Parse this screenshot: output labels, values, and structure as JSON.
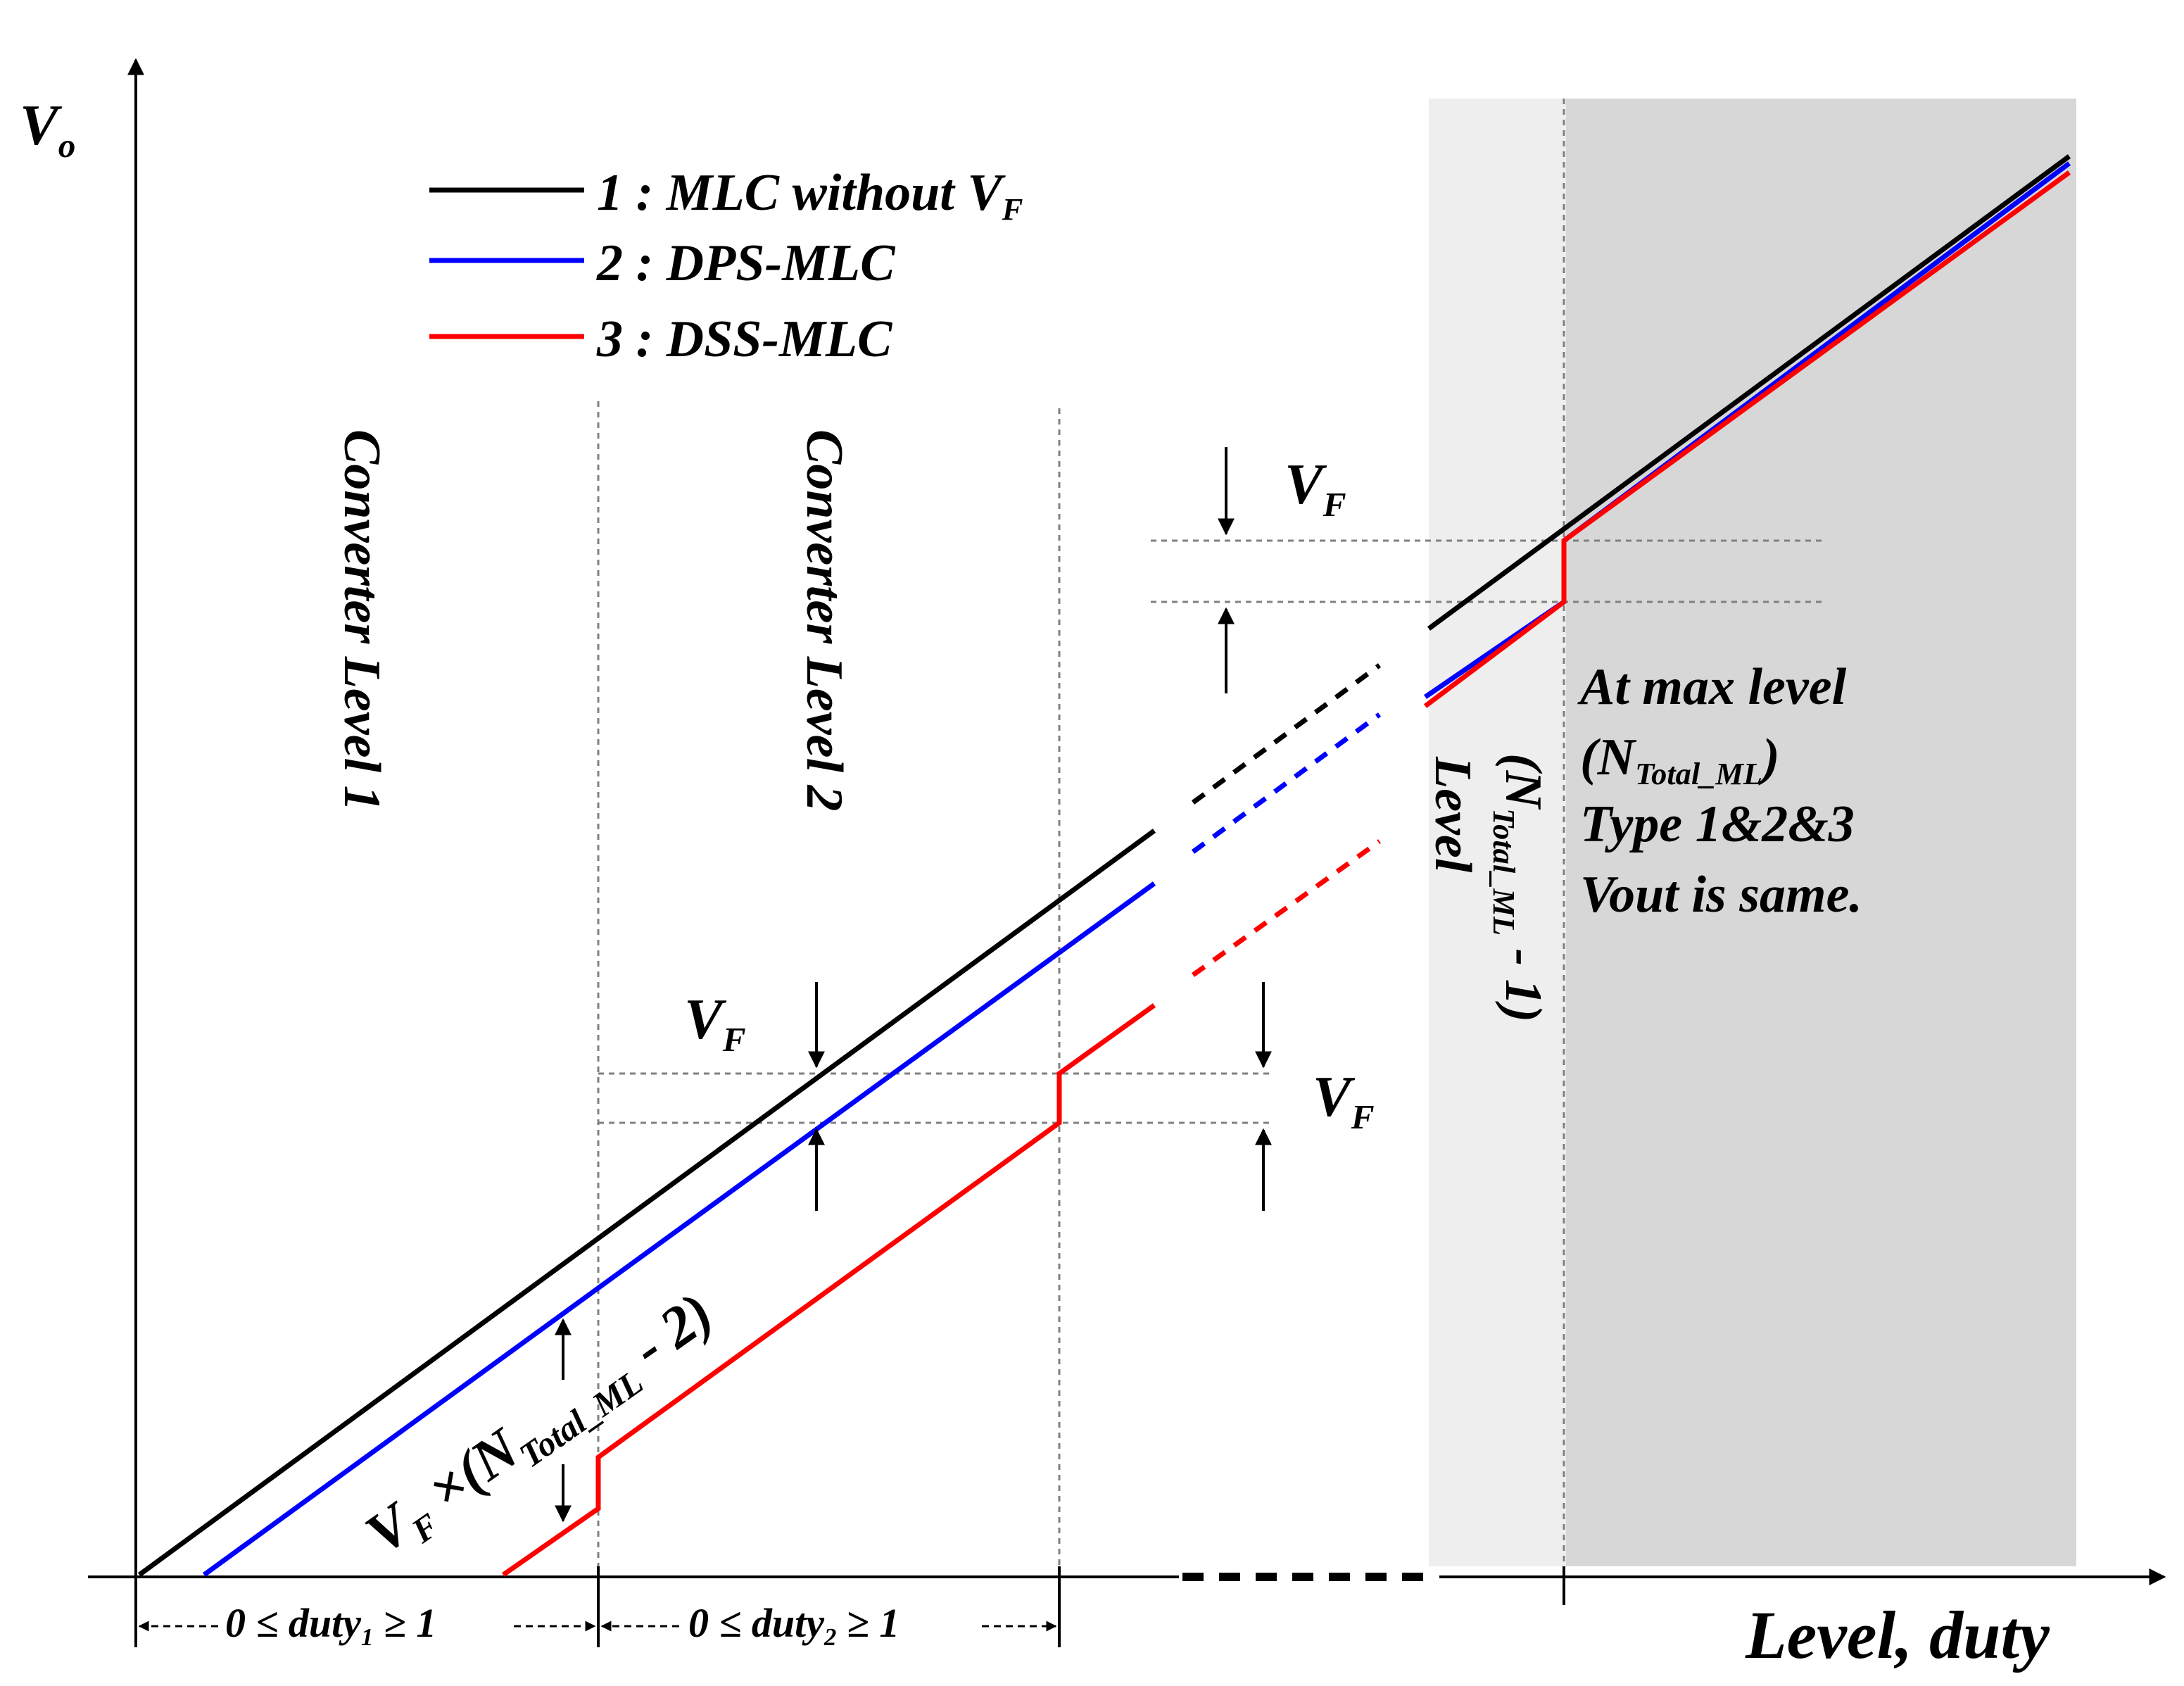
{
  "colors": {
    "series_1": "#000000",
    "series_2": "#0000ff",
    "series_3": "#ff0000",
    "shade_light": "#eeeeee",
    "shade_dark": "#d7d7d7",
    "guide": "#808080"
  },
  "axes": {
    "y_label_main": "V",
    "y_label_sub": "o",
    "x_label": "Level, duty"
  },
  "legend": [
    {
      "id": "1",
      "prefix": "1 : MLC without V",
      "sub": "F"
    },
    {
      "id": "2",
      "prefix": "2 : DPS-MLC",
      "sub": ""
    },
    {
      "id": "3",
      "prefix": "3 : DSS-MLC",
      "sub": ""
    }
  ],
  "levels": {
    "level1": "Converter Level 1",
    "level2": "Converter Level 2",
    "level_n1_main": "(N",
    "level_n1_sub": "Total_ML",
    "level_n1_tail": " - 1)",
    "level_n1_word": "Level"
  },
  "vf": {
    "main": "V",
    "sub": "F"
  },
  "vf_mult": {
    "main": "V",
    "sub": "F",
    "mid": " ×(N",
    "sub2": "Total_ML",
    "tail": " - 2)"
  },
  "annotation": {
    "line1": "At max level",
    "line2_open": "(N",
    "line2_sub": "Total_ML",
    "line2_close": ")",
    "line3": "Type 1&2&3",
    "line4": "Vout is same."
  },
  "duty": {
    "d1_pre": "0 ≤  duty",
    "d1_sub": "1",
    "d1_post": " ≥ 1",
    "d2_pre": "0 ≤  duty",
    "d2_sub": "2",
    "d2_post": " ≥ 1"
  }
}
